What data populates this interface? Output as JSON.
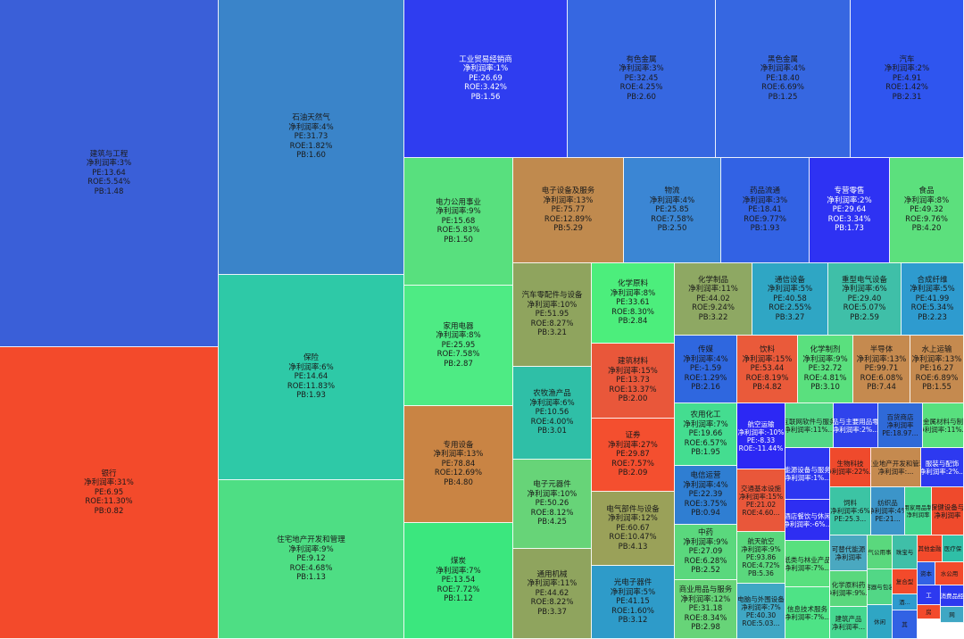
{
  "chart_data": {
    "type": "treemap",
    "metric_labels": {
      "margin": "净利润率",
      "pe": "PE",
      "roe": "ROE",
      "pb": "PB"
    },
    "items": [
      {
        "name": "建筑与工程",
        "margin": "净利润率:3%",
        "pe": "PE:13.64",
        "roe": "ROE:5.54%",
        "pb": "PB:1.48",
        "color": "#3a5fd8"
      },
      {
        "name": "银行",
        "margin": "净利润率:31%",
        "pe": "PE:6.95",
        "roe": "ROE:11.30%",
        "pb": "PB:0.82",
        "color": "#f34a2b"
      },
      {
        "name": "石油天然气",
        "margin": "净利润率:4%",
        "pe": "PE:31.73",
        "roe": "ROE:1.82%",
        "pb": "PB:1.60",
        "color": "#3a84c9"
      },
      {
        "name": "保险",
        "margin": "净利润率:6%",
        "pe": "PE:14.64",
        "roe": "ROE:11.83%",
        "pb": "PB:1.93",
        "color": "#2ec9a7"
      },
      {
        "name": "住宅地产开发和管理",
        "margin": "净利润率:9%",
        "pe": "PE:9.12",
        "roe": "ROE:4.68%",
        "pb": "PB:1.13",
        "color": "#4ede84"
      },
      {
        "name": "工业贸易经销商",
        "margin": "净利润率:1%",
        "pe": "PE:26.69",
        "roe": "ROE:3.42%",
        "pb": "PB:1.56",
        "color": "#2f3df0"
      },
      {
        "name": "有色金属",
        "margin": "净利润率:3%",
        "pe": "PE:32.45",
        "roe": "ROE:4.25%",
        "pb": "PB:2.60",
        "color": "#3667e1"
      },
      {
        "name": "黑色金属",
        "margin": "净利润率:4%",
        "pe": "PE:18.40",
        "roe": "ROE:6.69%",
        "pb": "PB:1.25",
        "color": "#3667e1"
      },
      {
        "name": "汽车",
        "margin": "净利润率:2%",
        "pe": "PE:4.91",
        "roe": "ROE:1.42%",
        "pb": "PB:2.31",
        "color": "#2f55ef"
      },
      {
        "name": "电力公用事业",
        "margin": "净利润率:9%",
        "pe": "PE:15.68",
        "roe": "ROE:5.83%",
        "pb": "PB:1.50",
        "color": "#58e07e"
      },
      {
        "name": "家用电器",
        "margin": "净利润率:8%",
        "pe": "PE:25.95",
        "roe": "ROE:7.58%",
        "pb": "PB:2.87",
        "color": "#4eeb84"
      },
      {
        "name": "专用设备",
        "margin": "净利润率:13%",
        "pe": "PE:78.84",
        "roe": "ROE:12.69%",
        "pb": "PB:4.80",
        "color": "#c98444"
      },
      {
        "name": "煤炭",
        "margin": "净利润率:7%",
        "pe": "PE:13.54",
        "roe": "ROE:7.72%",
        "pb": "PB:1.12",
        "color": "#3be77e"
      },
      {
        "name": "电子设备及服务",
        "margin": "净利润率:13%",
        "pe": "PE:75.77",
        "roe": "ROE:12.89%",
        "pb": "PB:5.29",
        "color": "#c08a4e"
      },
      {
        "name": "物流",
        "margin": "净利润率:4%",
        "pe": "PE:25.85",
        "roe": "ROE:7.58%",
        "pb": "PB:2.50",
        "color": "#3b86d4"
      },
      {
        "name": "药品流通",
        "margin": "净利润率:3%",
        "pe": "PE:18.41",
        "roe": "ROE:9.77%",
        "pb": "PB:1.93",
        "color": "#3262e4"
      },
      {
        "name": "专营零售",
        "margin": "净利润率:2%",
        "pe": "PE:29.64",
        "roe": "ROE:3.34%",
        "pb": "PB:1.73",
        "color": "#2e32f3"
      },
      {
        "name": "食品",
        "margin": "净利润率:8%",
        "pe": "PE:49.32",
        "roe": "ROE:9.76%",
        "pb": "PB:4.20",
        "color": "#5ce07d"
      },
      {
        "name": "汽车零配件与设备",
        "margin": "净利润率:10%",
        "pe": "PE:51.95",
        "roe": "ROE:8.27%",
        "pb": "PB:3.21",
        "color": "#8fa45e"
      },
      {
        "name": "农牧渔产品",
        "margin": "净利润率:6%",
        "pe": "PE:10.56",
        "roe": "ROE:4.00%",
        "pb": "PB:3.01",
        "color": "#2fbfa7"
      },
      {
        "name": "电子元器件",
        "margin": "净利润率:10%",
        "pe": "PE:50.26",
        "roe": "ROE:8.12%",
        "pb": "PB:4.25",
        "color": "#67d478"
      },
      {
        "name": "通用机械",
        "margin": "净利润率:11%",
        "pe": "PE:44.62",
        "roe": "ROE:8.22%",
        "pb": "PB:3.37",
        "color": "#8fa45e"
      },
      {
        "name": "化学原料",
        "margin": "净利润率:8%",
        "pe": "PE:33.61",
        "roe": "ROE:8.30%",
        "pb": "PB:2.84",
        "color": "#4cee7c"
      },
      {
        "name": "建筑材料",
        "margin": "净利润率:15%",
        "pe": "PE:13.73",
        "roe": "ROE:13.37%",
        "pb": "PB:2.00",
        "color": "#e9573a"
      },
      {
        "name": "证券",
        "margin": "净利润率:27%",
        "pe": "PE:29.87",
        "roe": "ROE:7.57%",
        "pb": "PB:2.09",
        "color": "#f44f2f"
      },
      {
        "name": "电气部件与设备",
        "margin": "净利润率:12%",
        "pe": "PE:60.67",
        "roe": "ROE:10.47%",
        "pb": "PB:4.13",
        "color": "#9aa159"
      },
      {
        "name": "光电子器件",
        "margin": "净利润率:5%",
        "pe": "PE:41.15",
        "roe": "ROE:1.60%",
        "pb": "PB:3.12",
        "color": "#2e9bc9"
      },
      {
        "name": "化学制品",
        "margin": "净利润率:11%",
        "pe": "PE:44.02",
        "roe": "ROE:9.24%",
        "pb": "PB:3.22",
        "color": "#8ea863"
      },
      {
        "name": "通信设备",
        "margin": "净利润率:5%",
        "pe": "PE:40.58",
        "roe": "ROE:2.55%",
        "pb": "PB:3.27",
        "color": "#2fa6c4"
      },
      {
        "name": "重型电气设备",
        "margin": "净利润率:6%",
        "pe": "PE:29.40",
        "roe": "ROE:5.07%",
        "pb": "PB:2.59",
        "color": "#3fbfa8"
      },
      {
        "name": "合成纤维",
        "margin": "净利润率:5%",
        "pe": "PE:41.99",
        "roe": "ROE:5.34%",
        "pb": "PB:2.23",
        "color": "#2e9bcf"
      },
      {
        "name": "传媒",
        "margin": "净利润率:4%",
        "pe": "PE:-1.59",
        "roe": "ROE:1.29%",
        "pb": "PB:2.16",
        "color": "#2f67df"
      },
      {
        "name": "饮料",
        "margin": "净利润率:15%",
        "pe": "PE:53.44",
        "roe": "ROE:8.19%",
        "pb": "PB:4.82",
        "color": "#ea5a3a"
      },
      {
        "name": "化学制剂",
        "margin": "净利润率:9%",
        "pe": "PE:32.72",
        "roe": "ROE:4.81%",
        "pb": "PB:3.10",
        "color": "#5ae07e"
      },
      {
        "name": "半导体",
        "margin": "净利润率:13%",
        "pe": "PE:99.71",
        "roe": "ROE:6.08%",
        "pb": "PB:7.44",
        "color": "#c58a4f"
      },
      {
        "name": "水上运输",
        "margin": "净利润率:13%",
        "pe": "PE:16.27",
        "roe": "ROE:6.89%",
        "pb": "PB:1.55",
        "color": "#c58a4f"
      },
      {
        "name": "农用化工",
        "margin": "净利润率:7%",
        "pe": "PE:19.66",
        "roe": "ROE:6.57%",
        "pb": "PB:1.95",
        "color": "#44dd90"
      },
      {
        "name": "航空运输",
        "margin": "净利润率:-10%",
        "pe": "PE:-8.33",
        "roe": "ROE:-11.44%",
        "pb": "",
        "color": "#2c28f4"
      },
      {
        "name": "互联网软件与服务",
        "margin": "净利润率:11%...",
        "pe": "",
        "roe": "",
        "pb": "",
        "color": "#52d786"
      },
      {
        "name": "食品与主要用品零售",
        "margin": "净利润率:2%...",
        "pe": "",
        "roe": "",
        "pb": "",
        "color": "#2f43ec"
      },
      {
        "name": "百货商店",
        "margin": "净利润率",
        "pe": "PE:18.97...",
        "roe": "",
        "pb": "",
        "color": "#2f6ad8"
      },
      {
        "name": "非金属材料与制品",
        "margin": "净利润率:11%...",
        "pe": "",
        "roe": "",
        "pb": "",
        "color": "#58e07e"
      },
      {
        "name": "证券",
        "margin": "净利润率:27%",
        "pe": "",
        "roe": "",
        "pb": "",
        "color": "#f44f2f"
      },
      {
        "name": "电信运营",
        "margin": "净利润率:4%",
        "pe": "PE:22.39",
        "roe": "ROE:3.75%",
        "pb": "PB:0.94",
        "color": "#2f7ed2"
      },
      {
        "name": "交通基本设施",
        "margin": "净利润率:15%",
        "pe": "PE:21.02",
        "roe": "ROE:4.60...",
        "pb": "",
        "color": "#e9573a"
      },
      {
        "name": "能源设备与服务",
        "margin": "净利润率:1%...",
        "pe": "",
        "roe": "",
        "pb": "",
        "color": "#2d37f1"
      },
      {
        "name": "生物科技",
        "margin": "净利润率:22%...",
        "pe": "",
        "roe": "",
        "pb": "",
        "color": "#ef4a2c"
      },
      {
        "name": "工业地产开发和管理",
        "margin": "净利润率:...",
        "pe": "",
        "roe": "",
        "pb": "",
        "color": "#c58a4f"
      },
      {
        "name": "服装与配饰",
        "margin": "净利润率:2%...",
        "pe": "",
        "roe": "",
        "pb": "",
        "color": "#2d39f0"
      },
      {
        "name": "中药",
        "margin": "净利润率:9%",
        "pe": "PE:27.09",
        "roe": "ROE:6.28%",
        "pb": "PB:2.52",
        "color": "#5ad87d"
      },
      {
        "name": "航天航空",
        "margin": "净利润率:9%",
        "pe": "PE:93.86",
        "roe": "ROE:4.72%",
        "pb": "PB:5.36",
        "color": "#5ad87d"
      },
      {
        "name": "酒店餐饮与休闲",
        "margin": "净利润率:-6%...",
        "pe": "",
        "roe": "",
        "pb": "",
        "color": "#2e2ef2"
      },
      {
        "name": "饲料",
        "margin": "净利润率:6%",
        "pe": "PE:25.3...",
        "roe": "",
        "pb": "",
        "color": "#3cc4a4"
      },
      {
        "name": "纺织品",
        "margin": "净利润率:4%",
        "pe": "PE:21...",
        "roe": "",
        "pb": "",
        "color": "#3c95c9"
      },
      {
        "name": "耐用家用品制造",
        "margin": "净利润率",
        "pe": "",
        "roe": "",
        "pb": "",
        "color": "#45d790"
      },
      {
        "name": "医疗保健设备与用品",
        "margin": "净利润率",
        "pe": "",
        "roe": "",
        "pb": "",
        "color": "#ef4a2c"
      },
      {
        "name": "商业用品与服务",
        "margin": "净利润率:12%",
        "pe": "PE:31.18",
        "roe": "ROE:8.34%",
        "pb": "PB:2.98",
        "color": "#67d478"
      },
      {
        "name": "电脑与外围设备",
        "margin": "净利润率:7%",
        "pe": "PE:40.30",
        "roe": "ROE:5.03...",
        "pb": "",
        "color": "#3fa7c4"
      },
      {
        "name": "纸类与林业产品",
        "margin": "净利润率:7%...",
        "pe": "",
        "roe": "",
        "pb": "",
        "color": "#58e07e"
      },
      {
        "name": "信息技术服务",
        "margin": "净利润率:7%...",
        "pe": "",
        "roe": "",
        "pb": "",
        "color": "#4ee386"
      },
      {
        "name": "可替代能源",
        "margin": "净利润率",
        "pe": "",
        "roe": "",
        "pb": "",
        "color": "#4aa8c0"
      },
      {
        "name": "化学原料药",
        "margin": "净利润率:9%...",
        "pe": "",
        "roe": "",
        "pb": "",
        "color": "#5ad87d"
      },
      {
        "name": "建筑产品",
        "margin": "净利润率...",
        "pe": "",
        "roe": "",
        "pb": "",
        "color": "#45d790"
      },
      {
        "name": "燃气公用事业",
        "margin": "",
        "pe": "",
        "roe": "",
        "pb": "",
        "color": "#5ad87d"
      },
      {
        "name": "珠宝与",
        "margin": "",
        "pe": "",
        "roe": "",
        "pb": "",
        "color": "#3fbfa8"
      },
      {
        "name": "其他金融",
        "margin": "",
        "pe": "",
        "roe": "",
        "pb": "",
        "color": "#f34a2b"
      },
      {
        "name": "医疗保",
        "margin": "",
        "pe": "",
        "roe": "",
        "pb": "",
        "color": "#2fbfa7"
      },
      {
        "name": "容器与包装",
        "margin": "",
        "pe": "",
        "roe": "",
        "pb": "",
        "color": "#52d786"
      },
      {
        "name": "复合型",
        "margin": "",
        "pe": "",
        "roe": "",
        "pb": "",
        "color": "#f34a2b"
      },
      {
        "name": "资本",
        "margin": "",
        "pe": "",
        "roe": "",
        "pb": "",
        "color": "#3262e4"
      },
      {
        "name": "水公用",
        "margin": "",
        "pe": "",
        "roe": "",
        "pb": "",
        "color": "#f34a2b"
      },
      {
        "name": "酒...",
        "margin": "",
        "pe": "",
        "roe": "",
        "pb": "",
        "color": "#2e9bcf"
      },
      {
        "name": "工",
        "margin": "",
        "pe": "",
        "roe": "",
        "pb": "",
        "color": "#2d39f0"
      },
      {
        "name": "消费品经",
        "margin": "",
        "pe": "",
        "roe": "",
        "pb": "",
        "color": "#2d39f0"
      },
      {
        "name": "休闲",
        "margin": "",
        "pe": "",
        "roe": "",
        "pb": "",
        "color": "#2fa6c4"
      },
      {
        "name": "其",
        "margin": "",
        "pe": "",
        "roe": "",
        "pb": "",
        "color": "#3262e4"
      },
      {
        "name": "房",
        "margin": "",
        "pe": "",
        "roe": "",
        "pb": "",
        "color": "#f34a2b"
      },
      {
        "name": "网",
        "margin": "",
        "pe": "",
        "roe": "",
        "pb": "",
        "color": "#3fa7c4"
      }
    ]
  }
}
